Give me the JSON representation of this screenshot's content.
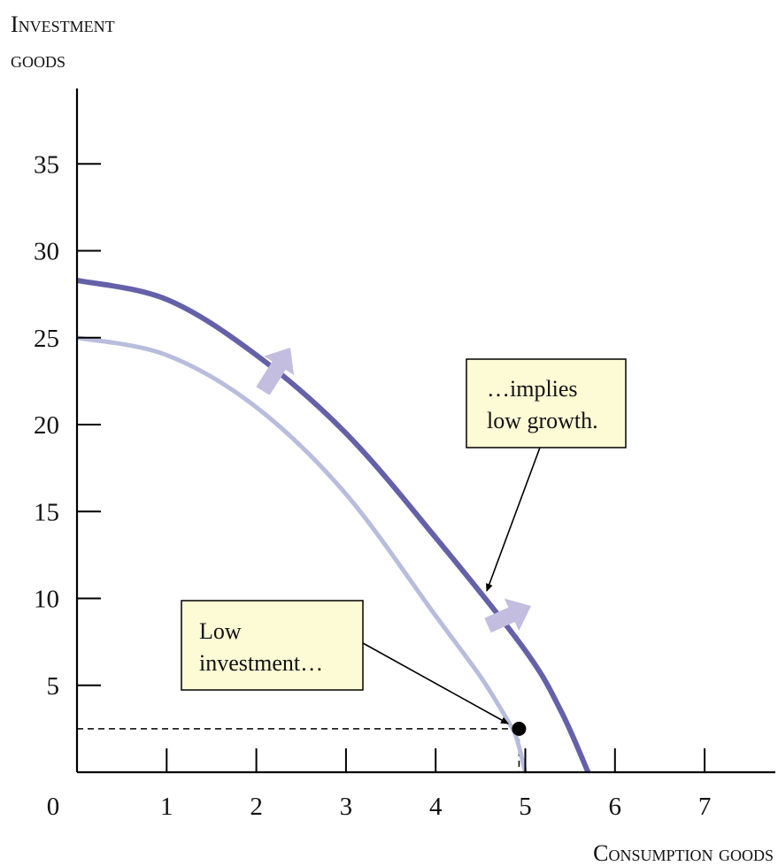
{
  "chart_data": {
    "type": "line",
    "xlabel": "Consumption goods",
    "ylabel": [
      "Investment",
      "goods"
    ],
    "xlim": [
      0,
      7.8
    ],
    "ylim": [
      0,
      39
    ],
    "x_ticks": [
      0,
      1,
      2,
      3,
      4,
      5,
      6,
      7
    ],
    "y_ticks": [
      5,
      10,
      15,
      20,
      25,
      30,
      35
    ],
    "colors": {
      "curve_old": "#b8bddd",
      "curve_new": "#6461a9",
      "arrow": "#c3bde0",
      "box_fill": "#fdfbd5"
    },
    "series": [
      {
        "x": [
          0,
          1,
          2,
          3,
          4,
          4.5,
          4.8,
          4.9,
          5.0
        ],
        "y": [
          25,
          24.0,
          21.0,
          16.0,
          9.0,
          5.5,
          3.0,
          2.0,
          0
        ]
      },
      {
        "x": [
          0,
          1,
          2,
          3,
          4,
          5,
          5.4,
          5.7
        ],
        "y": [
          28.3,
          27.2,
          24.0,
          19.5,
          13.5,
          7.0,
          3.5,
          0
        ]
      }
    ],
    "point": {
      "x": 4.93,
      "y": 2.5
    },
    "annotations": [
      {
        "lines": [
          "Low",
          "investment…"
        ]
      },
      {
        "lines": [
          "…implies",
          "low growth."
        ]
      }
    ]
  }
}
